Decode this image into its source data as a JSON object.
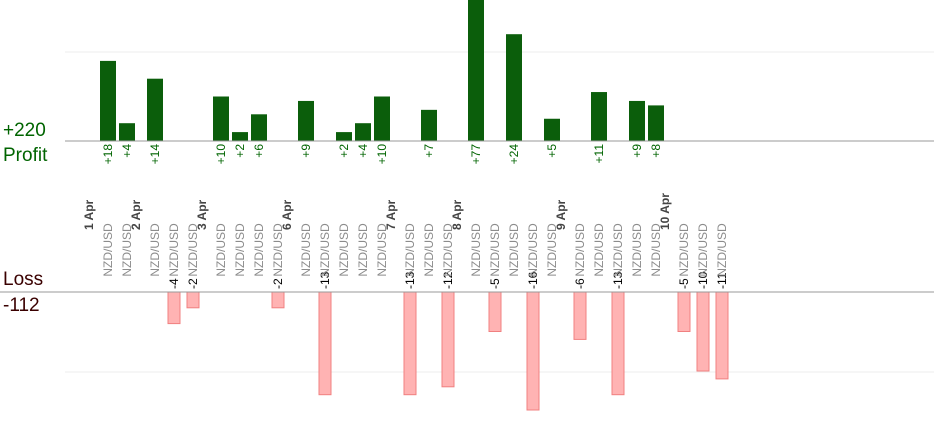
{
  "summary": {
    "profit_total": "+220",
    "profit_label": "Profit",
    "loss_label": "Loss",
    "loss_total": "-112"
  },
  "colors": {
    "profit_bar": "#0b5e0b",
    "profit_text": "#006400",
    "loss_bar": "#ffb3b3",
    "loss_bar_stroke": "#f08080",
    "loss_text": "#3a0000",
    "date_text": "#444444",
    "pair_text": "#8c8c8c",
    "axis": "#999999",
    "grid": "#eeeeee"
  },
  "chart_data": {
    "type": "bar",
    "title": "",
    "xlabel": "",
    "ylabel": "",
    "grid": true,
    "profit_ylim": [
      0,
      20
    ],
    "loss_ylim": [
      0,
      -20
    ],
    "trades": [
      {
        "date": "1 Apr",
        "pair": "NZD/USD",
        "value": 18
      },
      {
        "date": "",
        "pair": "NZD/USD",
        "value": 4
      },
      {
        "date": "2 Apr",
        "pair": "NZD/USD",
        "value": 14
      },
      {
        "date": "",
        "pair": "NZD/USD",
        "value": -4
      },
      {
        "date": "",
        "pair": "NZD/USD",
        "value": -2
      },
      {
        "date": "3 Apr",
        "pair": "NZD/USD",
        "value": 10
      },
      {
        "date": "",
        "pair": "NZD/USD",
        "value": 2
      },
      {
        "date": "",
        "pair": "NZD/USD",
        "value": 6
      },
      {
        "date": "",
        "pair": "NZD/USD",
        "value": -2
      },
      {
        "date": "6 Apr",
        "pair": "NZD/USD",
        "value": 9
      },
      {
        "date": "",
        "pair": "NZD/USD",
        "value": -13
      },
      {
        "date": "",
        "pair": "NZD/USD",
        "value": 2
      },
      {
        "date": "",
        "pair": "NZD/USD",
        "value": 4
      },
      {
        "date": "",
        "pair": "NZD/USD",
        "value": 10
      },
      {
        "date": "7 Apr",
        "pair": "NZD/USD",
        "value": -13
      },
      {
        "date": "",
        "pair": "NZD/USD",
        "value": 7
      },
      {
        "date": "",
        "pair": "NZD/USD",
        "value": -12
      },
      {
        "date": "8 Apr",
        "pair": "NZD/USD",
        "value": 77
      },
      {
        "date": "",
        "pair": "NZD/USD",
        "value": -5
      },
      {
        "date": "",
        "pair": "NZD/USD",
        "value": 24
      },
      {
        "date": "",
        "pair": "NZD/USD",
        "value": -16
      },
      {
        "date": "",
        "pair": "NZD/USD",
        "value": 5
      },
      {
        "date": "9 Apr",
        "pair": "NZD/USD",
        "value": -6
      },
      {
        "date": "",
        "pair": "NZD/USD",
        "value": 11
      },
      {
        "date": "",
        "pair": "NZD/USD",
        "value": -13
      },
      {
        "date": "",
        "pair": "NZD/USD",
        "value": 9
      },
      {
        "date": "",
        "pair": "NZD/USD",
        "value": 8
      },
      {
        "date": "10 Apr",
        "pair": "NZD/USD",
        "value": -5
      },
      {
        "date": "",
        "pair": "NZD/USD",
        "value": -10
      },
      {
        "date": "",
        "pair": "NZD/USD",
        "value": -11
      }
    ]
  }
}
